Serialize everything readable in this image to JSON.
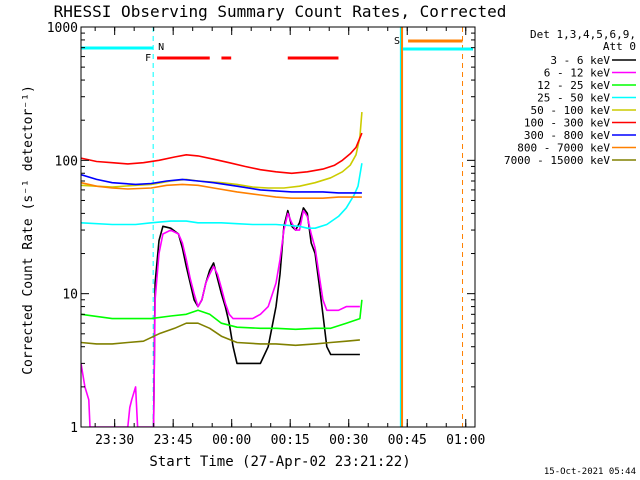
{
  "chart_data": {
    "type": "line",
    "title": "RHESSI Observing Summary Count Rates, Corrected",
    "xlabel": "Start Time (27-Apr-02 23:21:22)",
    "ylabel": "Corrected Count Rate (s⁻¹ detector⁻¹)",
    "yscale": "log",
    "ylim": [
      1,
      1000
    ],
    "xlim_minutes_after_23_21_22": [
      0,
      101
    ],
    "x_tick_labels": [
      "23:30",
      "23:45",
      "00:00",
      "00:15",
      "00:30",
      "00:45",
      "01:00"
    ],
    "x_tick_minutes": [
      8.63,
      23.63,
      38.63,
      53.63,
      68.63,
      83.63,
      98.63
    ],
    "y_tick_labels": [
      "1",
      "10",
      "100",
      "1000"
    ],
    "y_tick_values": [
      1,
      10,
      100,
      1000
    ],
    "legend_header": [
      "Det 1,3,4,5,6,9,",
      "Att 0"
    ],
    "legend_placement": "right",
    "timestamp": "15-Oct-2021 05:44",
    "grid": false,
    "flags": {
      "night_label": "N",
      "saa_label": "S",
      "flare_label": "F",
      "night_start_min": 18.5,
      "night_end_min": 82.0,
      "saa_start_min": 82.3,
      "saa_end_min": 97.8,
      "flare_intervals_min": [
        [
          19.5,
          33.0
        ],
        [
          36.0,
          38.5
        ],
        [
          53.0,
          66.0
        ]
      ]
    },
    "series": [
      {
        "name": "3 - 6 keV",
        "color": "#000000",
        "points": [
          [
            18.6,
            1
          ],
          [
            19,
            12
          ],
          [
            20,
            25
          ],
          [
            21,
            32
          ],
          [
            23,
            31
          ],
          [
            25,
            28
          ],
          [
            26,
            22
          ],
          [
            27,
            16
          ],
          [
            28,
            12
          ],
          [
            29,
            9
          ],
          [
            30,
            8
          ],
          [
            31,
            9
          ],
          [
            32,
            12
          ],
          [
            33,
            15
          ],
          [
            34,
            17
          ],
          [
            35,
            13
          ],
          [
            36,
            10
          ],
          [
            37,
            8
          ],
          [
            38,
            6
          ],
          [
            39,
            4
          ],
          [
            40,
            3
          ],
          [
            42,
            3
          ],
          [
            44,
            3
          ],
          [
            46,
            3
          ],
          [
            48,
            4
          ],
          [
            50,
            8
          ],
          [
            51,
            14
          ],
          [
            52,
            32
          ],
          [
            53,
            42
          ],
          [
            54,
            32
          ],
          [
            55,
            30
          ],
          [
            56,
            34
          ],
          [
            57,
            44
          ],
          [
            58,
            40
          ],
          [
            59,
            24
          ],
          [
            60,
            20
          ],
          [
            61,
            12
          ],
          [
            62,
            7
          ],
          [
            63,
            4
          ],
          [
            64,
            3.5
          ],
          [
            66,
            3.5
          ],
          [
            68,
            3.5
          ],
          [
            70,
            3.5
          ],
          [
            71.5,
            3.5
          ]
        ]
      },
      {
        "name": "6 - 12 keV",
        "color": "#ff00ff",
        "points": [
          [
            0,
            3
          ],
          [
            1,
            2
          ],
          [
            2,
            1.6
          ],
          [
            2.3,
            1
          ],
          [
            12,
            1
          ],
          [
            12.5,
            1.4
          ],
          [
            13,
            1.6
          ],
          [
            14,
            2
          ],
          [
            14.5,
            1
          ],
          [
            18,
            1
          ],
          [
            18.6,
            1
          ],
          [
            19,
            9
          ],
          [
            20,
            20
          ],
          [
            21,
            28
          ],
          [
            23,
            30
          ],
          [
            25,
            28
          ],
          [
            26,
            24
          ],
          [
            27,
            18
          ],
          [
            28,
            13
          ],
          [
            29,
            10
          ],
          [
            30,
            8
          ],
          [
            31,
            9
          ],
          [
            32,
            12
          ],
          [
            33,
            14
          ],
          [
            34,
            16
          ],
          [
            35,
            14
          ],
          [
            36,
            11
          ],
          [
            37,
            8.5
          ],
          [
            38,
            7
          ],
          [
            39,
            6.5
          ],
          [
            40,
            6.5
          ],
          [
            42,
            6.5
          ],
          [
            44,
            6.5
          ],
          [
            46,
            7
          ],
          [
            48,
            8
          ],
          [
            50,
            12
          ],
          [
            51,
            18
          ],
          [
            52,
            30
          ],
          [
            53,
            40
          ],
          [
            54,
            34
          ],
          [
            55,
            30
          ],
          [
            56,
            30
          ],
          [
            57,
            42
          ],
          [
            58,
            38
          ],
          [
            59,
            28
          ],
          [
            60,
            22
          ],
          [
            61,
            14
          ],
          [
            62,
            9
          ],
          [
            63,
            7.5
          ],
          [
            64,
            7.5
          ],
          [
            66,
            7.5
          ],
          [
            68,
            8
          ],
          [
            70,
            8
          ],
          [
            71.5,
            8
          ]
        ]
      },
      {
        "name": "12 - 25 keV",
        "color": "#00ff00",
        "points": [
          [
            0,
            7
          ],
          [
            8,
            6.5
          ],
          [
            18,
            6.5
          ],
          [
            23,
            6.8
          ],
          [
            27,
            7
          ],
          [
            30,
            7.5
          ],
          [
            33,
            7
          ],
          [
            36,
            6
          ],
          [
            40,
            5.6
          ],
          [
            46,
            5.5
          ],
          [
            50,
            5.5
          ],
          [
            55,
            5.4
          ],
          [
            60,
            5.5
          ],
          [
            64,
            5.5
          ],
          [
            68,
            6
          ],
          [
            71.5,
            6.5
          ],
          [
            72,
            9
          ]
        ]
      },
      {
        "name": "25 - 50 keV",
        "color": "#00ffff",
        "points": [
          [
            0,
            34
          ],
          [
            8,
            33
          ],
          [
            14,
            33
          ],
          [
            18,
            34
          ],
          [
            23,
            35
          ],
          [
            27,
            35
          ],
          [
            30,
            34
          ],
          [
            36,
            34
          ],
          [
            40,
            33.5
          ],
          [
            44,
            33
          ],
          [
            50,
            33
          ],
          [
            56,
            32
          ],
          [
            58,
            31
          ],
          [
            60,
            31
          ],
          [
            63,
            33
          ],
          [
            66,
            38
          ],
          [
            68,
            44
          ],
          [
            70,
            55
          ],
          [
            71,
            64
          ],
          [
            72,
            95
          ]
        ]
      },
      {
        "name": "50 - 100 keV",
        "color": "#cccc00",
        "points": [
          [
            0,
            65
          ],
          [
            8,
            63
          ],
          [
            14,
            65
          ],
          [
            18,
            66
          ],
          [
            23,
            70
          ],
          [
            27,
            72
          ],
          [
            30,
            70
          ],
          [
            36,
            68
          ],
          [
            40,
            66
          ],
          [
            44,
            63
          ],
          [
            48,
            62
          ],
          [
            52,
            62
          ],
          [
            56,
            64
          ],
          [
            60,
            68
          ],
          [
            64,
            74
          ],
          [
            67,
            82
          ],
          [
            69,
            92
          ],
          [
            70.5,
            110
          ],
          [
            71.5,
            150
          ],
          [
            72,
            230
          ]
        ]
      },
      {
        "name": "100 - 300 keV",
        "color": "#ff0000",
        "points": [
          [
            0,
            104
          ],
          [
            4,
            98
          ],
          [
            8,
            96
          ],
          [
            12,
            94
          ],
          [
            16,
            96
          ],
          [
            20,
            100
          ],
          [
            24,
            106
          ],
          [
            27,
            110
          ],
          [
            30,
            108
          ],
          [
            34,
            102
          ],
          [
            38,
            96
          ],
          [
            42,
            90
          ],
          [
            46,
            85
          ],
          [
            50,
            82
          ],
          [
            54,
            80
          ],
          [
            58,
            82
          ],
          [
            62,
            86
          ],
          [
            65,
            92
          ],
          [
            67,
            100
          ],
          [
            69,
            112
          ],
          [
            70.5,
            125
          ],
          [
            72,
            160
          ]
        ]
      },
      {
        "name": "300 - 800 keV",
        "color": "#0000ff",
        "points": [
          [
            0,
            78
          ],
          [
            4,
            72
          ],
          [
            8,
            68
          ],
          [
            14,
            66
          ],
          [
            18,
            67
          ],
          [
            22,
            70
          ],
          [
            26,
            72
          ],
          [
            30,
            70
          ],
          [
            34,
            68
          ],
          [
            40,
            64
          ],
          [
            46,
            60
          ],
          [
            50,
            59
          ],
          [
            54,
            58
          ],
          [
            58,
            58
          ],
          [
            62,
            58
          ],
          [
            66,
            57
          ],
          [
            72,
            57
          ]
        ]
      },
      {
        "name": "800 - 7000 keV",
        "color": "#ff8000",
        "points": [
          [
            0,
            68
          ],
          [
            4,
            64
          ],
          [
            8,
            62
          ],
          [
            12,
            61
          ],
          [
            18,
            62
          ],
          [
            22,
            65
          ],
          [
            26,
            66
          ],
          [
            30,
            65
          ],
          [
            34,
            62
          ],
          [
            40,
            58
          ],
          [
            46,
            55
          ],
          [
            50,
            53
          ],
          [
            54,
            52
          ],
          [
            58,
            52
          ],
          [
            62,
            52
          ],
          [
            66,
            53
          ],
          [
            72,
            53
          ]
        ]
      },
      {
        "name": "7000 - 15000 keV",
        "color": "#808000",
        "points": [
          [
            0,
            4.3
          ],
          [
            4,
            4.2
          ],
          [
            8,
            4.2
          ],
          [
            12,
            4.3
          ],
          [
            16,
            4.4
          ],
          [
            20,
            5
          ],
          [
            24,
            5.5
          ],
          [
            27,
            6
          ],
          [
            30,
            6
          ],
          [
            33,
            5.5
          ],
          [
            36,
            4.8
          ],
          [
            40,
            4.3
          ],
          [
            46,
            4.2
          ],
          [
            50,
            4.2
          ],
          [
            55,
            4.1
          ],
          [
            60,
            4.2
          ],
          [
            64,
            4.3
          ],
          [
            68,
            4.4
          ],
          [
            71.5,
            4.5
          ]
        ]
      }
    ]
  }
}
